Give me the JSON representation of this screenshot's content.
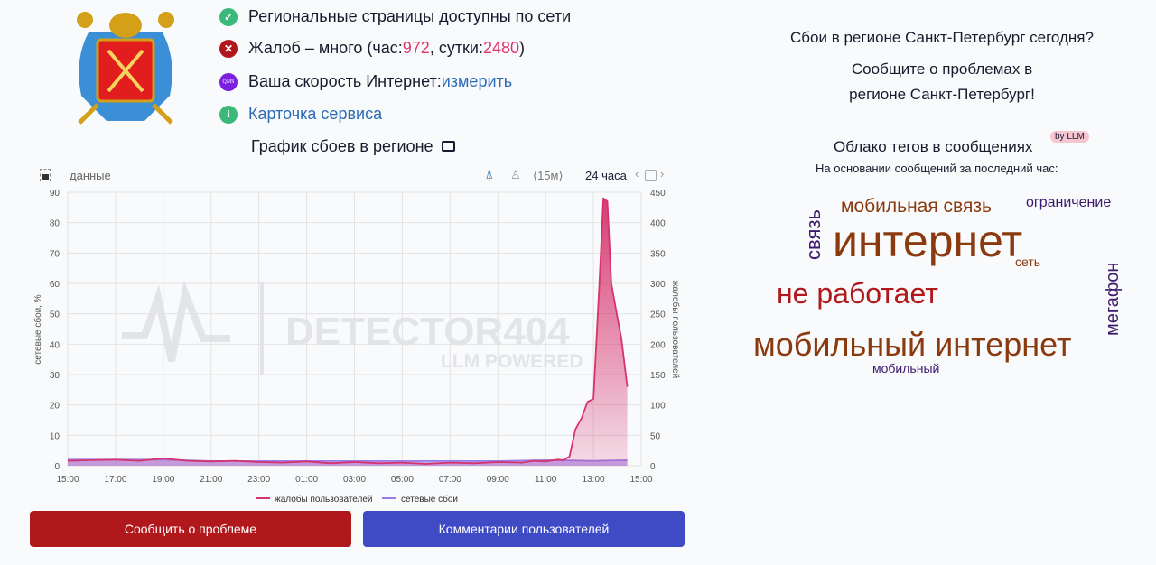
{
  "status": {
    "pages_available": "Региональные страницы доступны по сети",
    "complaints_prefix": "Жалоб – много (час: ",
    "complaints_hour": "972",
    "complaints_mid": ", сутки: ",
    "complaints_day": "2480",
    "complaints_suffix": ")",
    "speed_label": "Ваша скорость Интернет: ",
    "speed_link": "измерить",
    "qms_badge": "QMS",
    "service_card": "Карточка сервиса",
    "graph_title": "График сбоев в регионе"
  },
  "toolbar": {
    "data_link": "данные",
    "interval": "⟨15м⟩",
    "period": "24 часа"
  },
  "chart_data": {
    "type": "area",
    "watermark": [
      "DETECTOR404",
      "LLM POWERED"
    ],
    "x_ticks": [
      "15:00",
      "17:00",
      "19:00",
      "21:00",
      "23:00",
      "01:00",
      "03:00",
      "05:00",
      "07:00",
      "09:00",
      "11:00",
      "13:00",
      "15:00"
    ],
    "y_left": {
      "label": "сетевые сбои, %",
      "range": [
        0,
        90
      ],
      "ticks": [
        0,
        10,
        20,
        30,
        40,
        50,
        60,
        70,
        80,
        90
      ]
    },
    "y_right": {
      "label": "жалобы пользователей",
      "range": [
        0,
        450
      ],
      "ticks": [
        0,
        50,
        100,
        150,
        200,
        250,
        300,
        350,
        400,
        450
      ]
    },
    "grid": true,
    "legend_position": "bottom",
    "series": [
      {
        "name": "жалобы пользователей",
        "axis": "right",
        "color": "#d6336c",
        "x": [
          "15:00",
          "16:00",
          "17:00",
          "18:00",
          "19:00",
          "20:00",
          "21:00",
          "22:00",
          "23:00",
          "00:00",
          "01:00",
          "02:00",
          "03:00",
          "04:00",
          "05:00",
          "06:00",
          "07:00",
          "08:00",
          "09:00",
          "10:00",
          "10:30",
          "11:00",
          "11:30",
          "11:45",
          "12:00",
          "12:15",
          "12:30",
          "12:45",
          "13:00",
          "13:15",
          "13:25",
          "13:35",
          "13:45",
          "14:00",
          "14:10",
          "14:25"
        ],
        "values": [
          8,
          9,
          10,
          8,
          12,
          8,
          7,
          8,
          6,
          5,
          7,
          4,
          6,
          4,
          5,
          3,
          5,
          4,
          6,
          5,
          8,
          7,
          10,
          9,
          15,
          60,
          78,
          105,
          110,
          300,
          440,
          435,
          300,
          245,
          210,
          130
        ]
      },
      {
        "name": "сетевые сбои",
        "axis": "left",
        "color": "#9b7be8",
        "x": [
          "15:00",
          "17:00",
          "19:00",
          "21:00",
          "23:00",
          "01:00",
          "03:00",
          "05:00",
          "07:00",
          "09:00",
          "11:00",
          "13:00",
          "14:25"
        ],
        "values": [
          2,
          2,
          2,
          1.5,
          1.5,
          1.5,
          1.5,
          1.5,
          1.5,
          1.5,
          1.8,
          1.6,
          1.8
        ]
      }
    ]
  },
  "buttons": {
    "report": "Сообщить о проблеме",
    "comments": "Комментарии пользователей"
  },
  "right": {
    "question": "Сбои в регионе Санкт-Петербург сегодня?",
    "report_line1": "Сообщите о проблемах в",
    "report_line2": "регионе Санкт-Петербург!",
    "cloud_title": "Облако тегов в сообщениях",
    "llm_badge": "by LLM",
    "cloud_subtitle": "На основании сообщений за последний час:",
    "tags": [
      "мобильная связь",
      "ограничение",
      "связь",
      "интернет",
      "сеть",
      "не работает",
      "мегафон",
      "мобильный интернет",
      "мобильный"
    ]
  },
  "colors": {
    "report": "#b0181c",
    "comments": "#3f4bc4",
    "ok": "#3ab97a",
    "error": "#b0181c",
    "qms": "#7b1fe0"
  }
}
